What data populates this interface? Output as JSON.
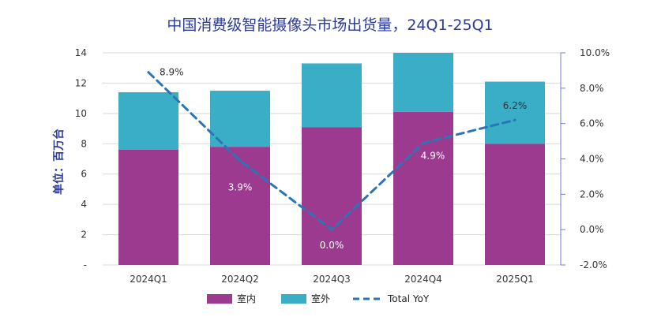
{
  "chart_data": {
    "type": "bar",
    "title": "中国消费级智能摄像头市场出货量，24Q1-25Q1",
    "ylabel": "单位：百万台",
    "categories": [
      "2024Q1",
      "2024Q2",
      "2024Q3",
      "2024Q4",
      "2025Q1"
    ],
    "series": [
      {
        "name": "室内",
        "type": "bar",
        "stack": "total",
        "color": "#9c3a8f",
        "values": [
          7.6,
          7.8,
          9.1,
          10.1,
          8.0
        ]
      },
      {
        "name": "室外",
        "type": "bar",
        "stack": "total",
        "color": "#3aaec6",
        "values": [
          3.8,
          3.7,
          4.2,
          3.9,
          4.1
        ]
      },
      {
        "name": "Total YoY",
        "type": "line",
        "axis": "right",
        "style": "dashed",
        "color": "#2a75b8",
        "values": [
          8.9,
          3.9,
          0.0,
          4.9,
          6.2
        ],
        "labels": [
          "8.9%",
          "3.9%",
          "0.0%",
          "4.9%",
          "6.2%"
        ]
      }
    ],
    "ylim": [
      0,
      14
    ],
    "yticks": [
      "-",
      "2",
      "4",
      "6",
      "8",
      "10",
      "12",
      "14"
    ],
    "y2lim": [
      -2.0,
      10.0
    ],
    "y2ticks": [
      "-2.0%",
      "0.0%",
      "2.0%",
      "4.0%",
      "6.0%",
      "8.0%",
      "10.0%"
    ],
    "grid": true,
    "legend": "bottom"
  }
}
